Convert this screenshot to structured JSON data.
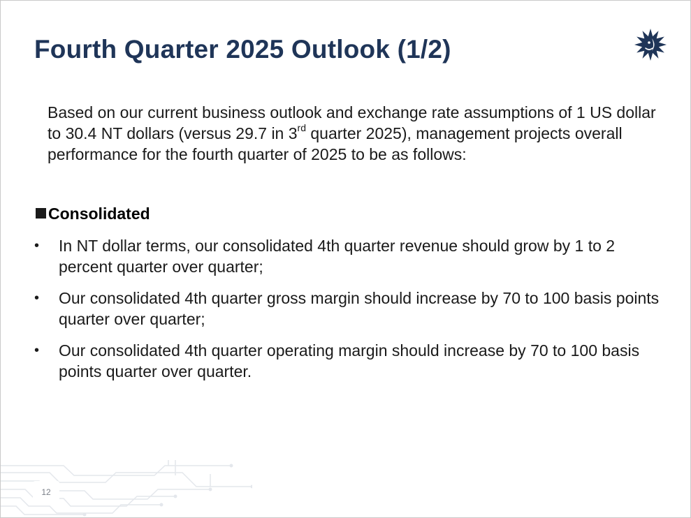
{
  "slide": {
    "title": "Fourth Quarter 2025 Outlook (1/2)",
    "intro": {
      "part1": "Based on our current business outlook and exchange rate assumptions of 1 US dollar to 30.4 NT dollars (versus 29.7 in 3",
      "superscript": "rd",
      "part2": " quarter 2025), management projects overall performance for the fourth quarter of 2025 to be as follows:"
    },
    "section": {
      "heading": "Consolidated",
      "bullet_glyph": "•",
      "bullets": [
        "In NT dollar terms, our consolidated 4th quarter revenue should grow by 1 to 2 percent quarter over quarter;",
        "Our consolidated 4th quarter gross margin should increase by 70 to 100 basis points quarter over quarter;",
        "Our consolidated 4th quarter operating margin should increase by 70 to 100 basis points quarter over quarter."
      ]
    },
    "page_number": "12",
    "icons": {
      "logo": "sun-face-logo-icon",
      "heading_marker": "square-bullet-icon",
      "footer_decoration": "circuit-pattern"
    },
    "colors": {
      "title": "#1f3558",
      "logo": "#1f3558",
      "text": "#1a1a1a"
    }
  }
}
